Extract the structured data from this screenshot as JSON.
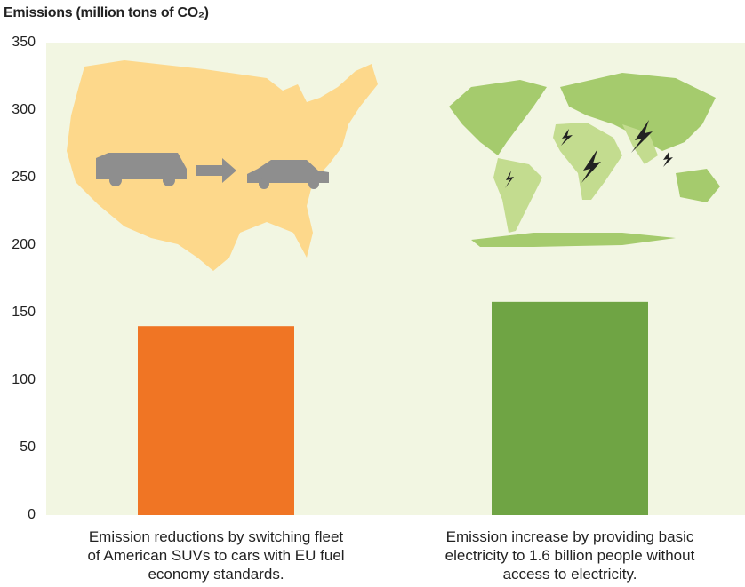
{
  "chart_data": {
    "type": "bar",
    "title": "Emissions (million tons of CO₂)",
    "categories": [
      "Emission reductions by switching fleet of American SUVs to cars with EU fuel economy standards.",
      "Emission increase by providing basic electricity to 1.6 billion people without access to electricity."
    ],
    "values": [
      140,
      158
    ],
    "colors": [
      "#f07524",
      "#6fa444"
    ],
    "ylim": [
      0,
      350
    ],
    "yticks": [
      0,
      50,
      100,
      150,
      200,
      250,
      300,
      350
    ],
    "grid": false
  }
}
